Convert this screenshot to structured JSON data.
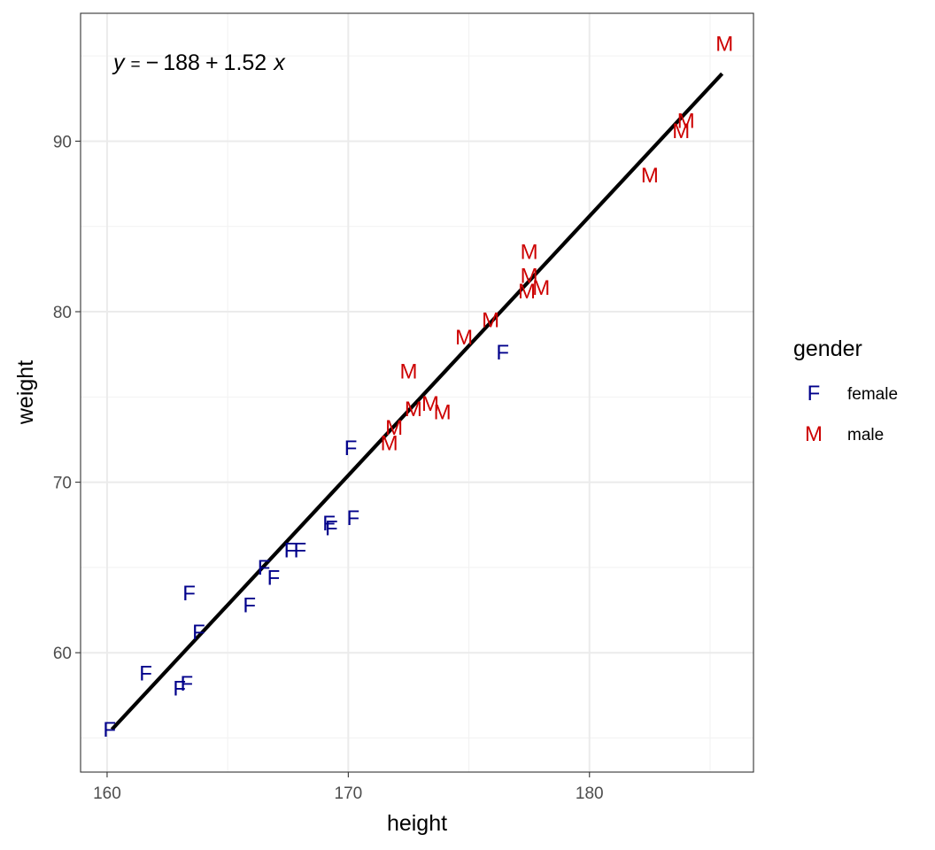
{
  "chart_data": {
    "type": "scatter",
    "xlabel": "height",
    "ylabel": "weight",
    "xlim": [
      158.9,
      186.8
    ],
    "ylim": [
      53,
      97.5
    ],
    "x_ticks": [
      160,
      170,
      180
    ],
    "y_ticks": [
      60,
      70,
      80,
      90
    ],
    "grid": true,
    "legend": {
      "title": "gender",
      "position": "right",
      "entries": [
        {
          "key": "F",
          "label": "female",
          "color": "#00008B"
        },
        {
          "key": "M",
          "label": "male",
          "color": "#CD0000"
        }
      ]
    },
    "annotation": {
      "y": "y",
      "equals": "=",
      "minus": "−",
      "intercept": "188",
      "plus": "+",
      "slope": "1.52",
      "x": "x"
    },
    "fit_line": {
      "intercept": -188,
      "slope": 1.52,
      "x_start": 160.2,
      "x_end": 185.5
    },
    "series": [
      {
        "name": "female",
        "label": "F",
        "color": "#00008B",
        "points": [
          {
            "x": 160.1,
            "y": 55.5
          },
          {
            "x": 161.6,
            "y": 58.8
          },
          {
            "x": 163.0,
            "y": 57.9
          },
          {
            "x": 163.3,
            "y": 58.2
          },
          {
            "x": 163.4,
            "y": 63.5
          },
          {
            "x": 163.8,
            "y": 61.2
          },
          {
            "x": 165.9,
            "y": 62.8
          },
          {
            "x": 166.5,
            "y": 65.0
          },
          {
            "x": 166.9,
            "y": 64.4
          },
          {
            "x": 167.6,
            "y": 66.0
          },
          {
            "x": 168.0,
            "y": 66.0
          },
          {
            "x": 169.2,
            "y": 67.6
          },
          {
            "x": 169.3,
            "y": 67.3
          },
          {
            "x": 170.2,
            "y": 67.9
          },
          {
            "x": 170.1,
            "y": 72.0
          },
          {
            "x": 176.4,
            "y": 77.6
          }
        ]
      },
      {
        "name": "male",
        "label": "M",
        "color": "#CD0000",
        "points": [
          {
            "x": 171.7,
            "y": 72.3
          },
          {
            "x": 171.9,
            "y": 73.2
          },
          {
            "x": 172.5,
            "y": 76.5
          },
          {
            "x": 172.7,
            "y": 74.3
          },
          {
            "x": 173.4,
            "y": 74.6
          },
          {
            "x": 173.9,
            "y": 74.1
          },
          {
            "x": 174.8,
            "y": 78.5
          },
          {
            "x": 175.9,
            "y": 79.5
          },
          {
            "x": 177.4,
            "y": 81.2
          },
          {
            "x": 177.5,
            "y": 82.1
          },
          {
            "x": 177.5,
            "y": 83.5
          },
          {
            "x": 178.0,
            "y": 81.4
          },
          {
            "x": 182.5,
            "y": 88.0
          },
          {
            "x": 183.8,
            "y": 90.6
          },
          {
            "x": 184.0,
            "y": 91.2
          },
          {
            "x": 185.6,
            "y": 95.7
          }
        ]
      }
    ]
  }
}
